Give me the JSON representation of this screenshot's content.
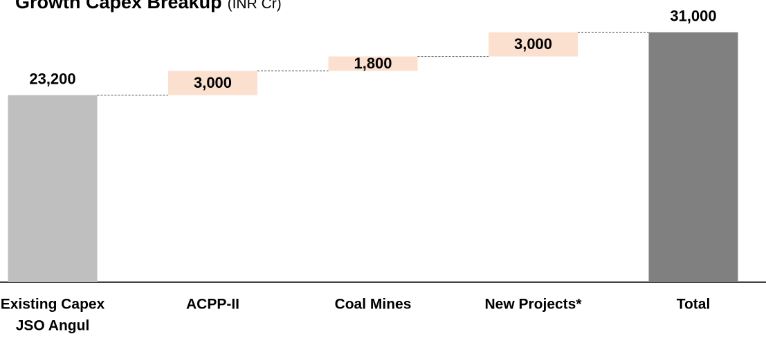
{
  "chart_data": {
    "type": "waterfall",
    "title": "Growth Capex Breakup",
    "subtitle": "(INR Cr)",
    "categories": [
      [
        "Existing Capex",
        "JSO Angul"
      ],
      [
        "ACPP-II"
      ],
      [
        "Coal Mines"
      ],
      [
        "New Projects*"
      ],
      [
        "Total"
      ]
    ],
    "values": [
      23200,
      3000,
      1800,
      3000,
      31000
    ],
    "value_labels": [
      "23,200",
      "3,000",
      "1,800",
      "3,000",
      "31,000"
    ],
    "measures": [
      "absolute",
      "relative",
      "relative",
      "relative",
      "total"
    ],
    "colors": [
      "#bfbfbf",
      "#fbe0cf",
      "#fbe0cf",
      "#fbe0cf",
      "#808080"
    ],
    "ylim": [
      0,
      35000
    ]
  }
}
